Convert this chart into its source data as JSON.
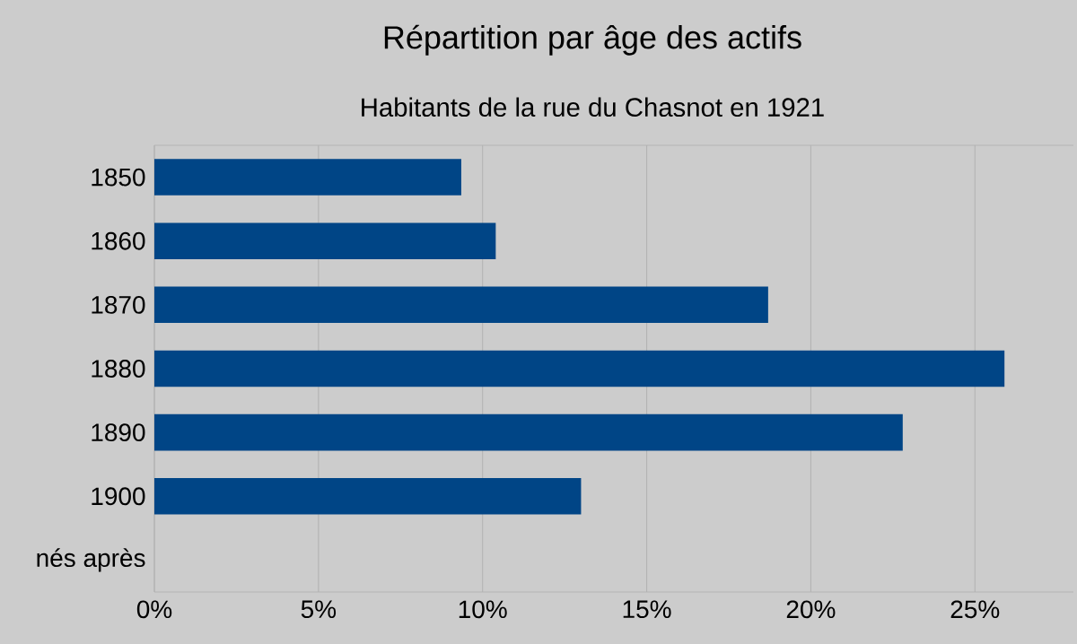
{
  "chart_data": {
    "type": "bar",
    "orientation": "horizontal",
    "title": "Répartition par âge des actifs",
    "subtitle": "Habitants de la rue du Chasnot en 1921",
    "categories": [
      "1850",
      "1860",
      "1870",
      "1880",
      "1890",
      "1900",
      "nés après"
    ],
    "values": [
      9.35,
      10.4,
      18.7,
      25.9,
      22.8,
      13.0,
      0
    ],
    "color": "#004586",
    "xlim": [
      0,
      28
    ],
    "xticks": [
      {
        "value": 0,
        "label": "0%"
      },
      {
        "value": 5,
        "label": "5%"
      },
      {
        "value": 10,
        "label": "10%"
      },
      {
        "value": 15,
        "label": "15%"
      },
      {
        "value": 20,
        "label": "20%"
      },
      {
        "value": 25,
        "label": "25%"
      }
    ],
    "grid": "x"
  }
}
